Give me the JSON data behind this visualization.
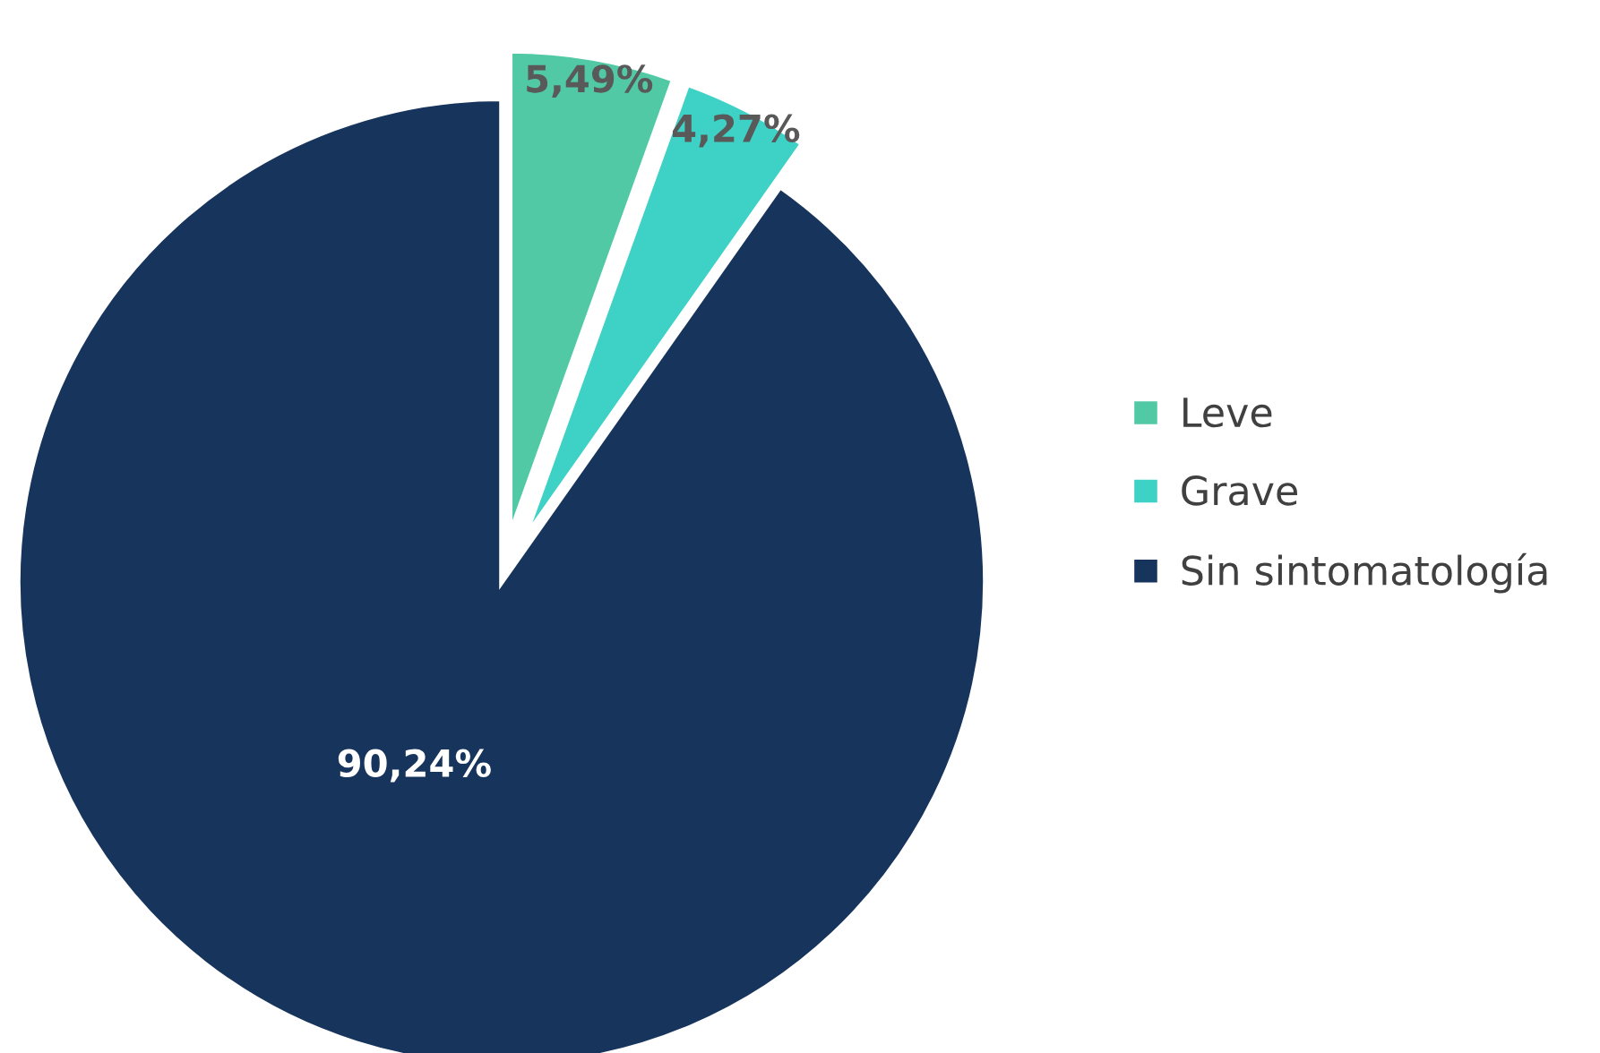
{
  "chart_data": {
    "type": "pie",
    "categories": [
      "Leve",
      "Grave",
      "Sin sintomatología"
    ],
    "values": [
      5.49,
      4.27,
      90.24
    ],
    "value_labels": [
      "5,49%",
      "4,27%",
      "90,24%"
    ],
    "colors": [
      "#52c9a5",
      "#3ed1c5",
      "#17355c"
    ],
    "legend": "right"
  }
}
